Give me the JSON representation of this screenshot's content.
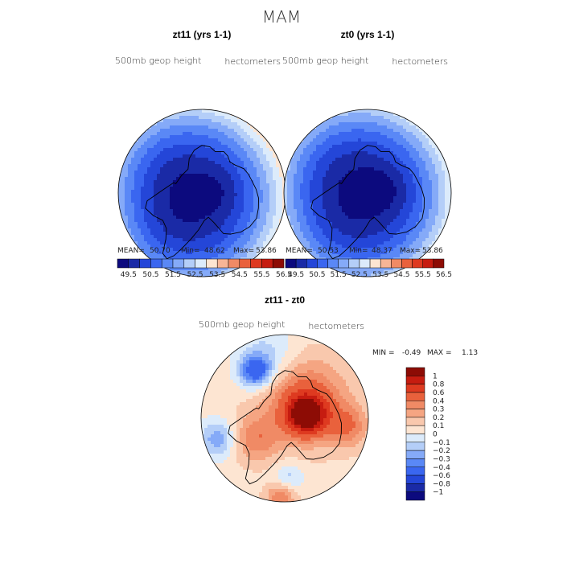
{
  "figure": {
    "title": "MAM"
  },
  "chart_data": [
    {
      "type": "heatmap",
      "projection": "south-polar-stereographic",
      "title": "zt11 (yrs 1-1)",
      "left_label": "500mb geop height",
      "right_label": "hectometers",
      "stats": {
        "mean_label": "MEAN=",
        "mean": "50.70",
        "min_label": "Min=",
        "min": "48.62",
        "max_label": "Max=",
        "max": "53.86"
      },
      "pattern": {
        "field": "full",
        "lobe_lon_deg": -20,
        "lobe_offset": 0.18,
        "east_low": -0.6,
        "ridge_lon_deg": 175
      },
      "colorbar": {
        "orientation": "horizontal",
        "levels": [
          "49.5",
          "50.5",
          "51.5",
          "52.5",
          "53.5",
          "54.5",
          "55.5",
          "56.5"
        ],
        "colors": [
          "#0c0a7e",
          "#1a2aa6",
          "#2446d8",
          "#3a66f0",
          "#5a88f6",
          "#85aaf8",
          "#b4cef8",
          "#dcebfb",
          "#fde5d2",
          "#f7b596",
          "#f08a65",
          "#e9613c",
          "#de3a20",
          "#c61c10",
          "#8d0c05"
        ]
      }
    },
    {
      "type": "heatmap",
      "projection": "south-polar-stereographic",
      "title": "zt0 (yrs 1-1)",
      "left_label": "500mb geop height",
      "right_label": "hectometers",
      "stats": {
        "mean_label": "MEAN=",
        "mean": "50.53",
        "min_label": "Min=",
        "min": "48.37",
        "max_label": "Max=",
        "max": "53.86"
      },
      "pattern": {
        "field": "full",
        "lobe_lon_deg": -10,
        "lobe_offset": 0.12,
        "east_low": -0.8,
        "ridge_lon_deg": 175
      },
      "colorbar": {
        "orientation": "horizontal",
        "levels": [
          "49.5",
          "50.5",
          "51.5",
          "52.5",
          "53.5",
          "54.5",
          "55.5",
          "56.5"
        ],
        "colors": [
          "#0c0a7e",
          "#1a2aa6",
          "#2446d8",
          "#3a66f0",
          "#5a88f6",
          "#85aaf8",
          "#b4cef8",
          "#dcebfb",
          "#fde5d2",
          "#f7b596",
          "#f08a65",
          "#e9613c",
          "#de3a20",
          "#c61c10",
          "#8d0c05"
        ]
      }
    },
    {
      "type": "heatmap",
      "projection": "south-polar-stereographic",
      "title": "zt11 - zt0",
      "left_label": "500mb geop height",
      "right_label": "hectometers",
      "stats": {
        "min_label": "MIN =",
        "min": "-0.49",
        "max_label": "MAX =",
        "max": "1.13"
      },
      "pattern": {
        "field": "difference"
      },
      "colorbar": {
        "orientation": "vertical",
        "levels": [
          "1",
          "0.8",
          "0.6",
          "0.4",
          "0.3",
          "0.2",
          "0.1",
          "0",
          "−0.1",
          "−0.2",
          "−0.3",
          "−0.4",
          "−0.6",
          "−0.8",
          "−1"
        ],
        "colors": [
          "#8d0c05",
          "#c61c10",
          "#de3a20",
          "#e9613c",
          "#f08a65",
          "#f5a582",
          "#f9c8ad",
          "#fde5d2",
          "#dcebfb",
          "#b4cef8",
          "#85aaf8",
          "#5a88f6",
          "#3a66f0",
          "#2446d8",
          "#1a2aa6",
          "#0c0a7e"
        ]
      }
    }
  ]
}
